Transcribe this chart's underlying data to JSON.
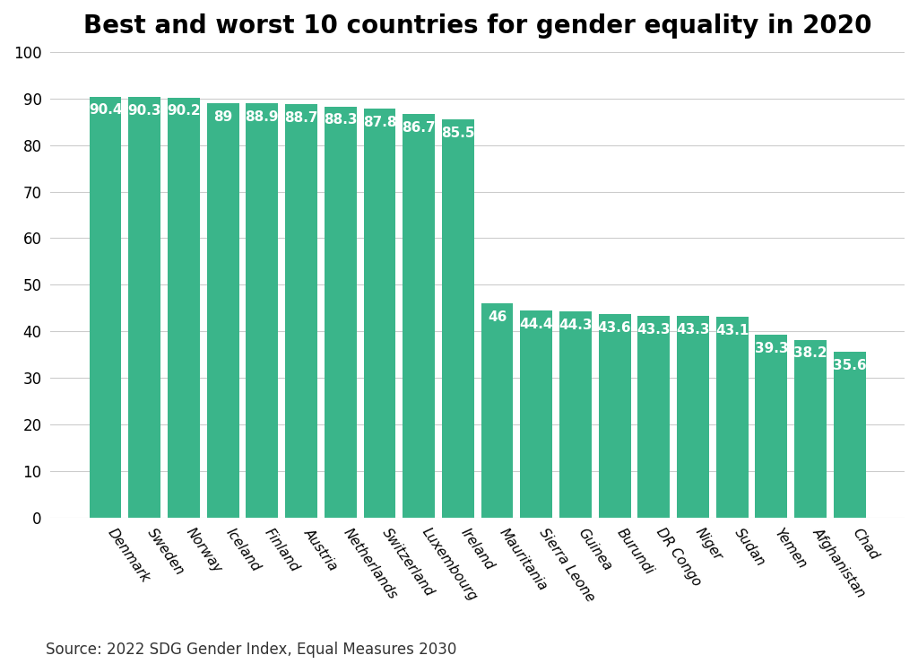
{
  "title": "Best and worst 10 countries for gender equality in 2020",
  "source": "Source: 2022 SDG Gender Index, Equal Measures 2030",
  "categories": [
    "Denmark",
    "Sweden",
    "Norway",
    "Iceland",
    "Finland",
    "Austria",
    "Netherlands",
    "Switzerland",
    "Luxembourg",
    "Ireland",
    "Mauritania",
    "Sierra Leone",
    "Guinea",
    "Burundi",
    "DR Congo",
    "Niger",
    "Sudan",
    "Yemen",
    "Afghanistan",
    "Chad"
  ],
  "values": [
    90.4,
    90.3,
    90.2,
    89,
    88.9,
    88.7,
    88.3,
    87.8,
    86.7,
    85.5,
    46,
    44.4,
    44.3,
    43.6,
    43.3,
    43.3,
    43.1,
    39.3,
    38.2,
    35.6
  ],
  "bar_color": "#3ab58a",
  "background_color": "#ffffff",
  "ylim": [
    0,
    100
  ],
  "yticks": [
    0,
    10,
    20,
    30,
    40,
    50,
    60,
    70,
    80,
    90,
    100
  ],
  "label_color": "#ffffff",
  "title_fontsize": 20,
  "label_fontsize": 11,
  "source_fontsize": 12,
  "xtick_fontsize": 11,
  "ytick_fontsize": 12,
  "grid_color": "#cccccc",
  "bar_width": 0.82,
  "xlabel_rotation": -55
}
